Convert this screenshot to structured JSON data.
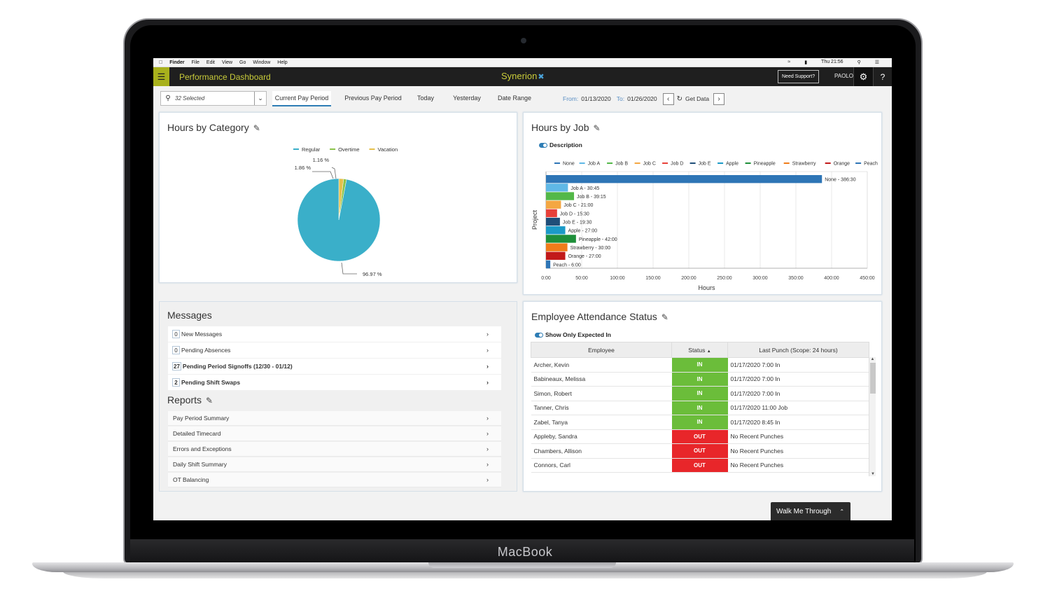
{
  "device": {
    "brand": "MacBook"
  },
  "macos_menubar": {
    "items": [
      "Finder",
      "File",
      "Edit",
      "View",
      "Go",
      "Window",
      "Help"
    ],
    "clock": "Thu 21:56"
  },
  "appbar": {
    "title": "Performance Dashboard",
    "logo": "Synerion",
    "support_label": "Need Support?",
    "user": "PAOLO"
  },
  "toolbar": {
    "selection": "32 Selected",
    "tabs": [
      "Current Pay Period",
      "Previous Pay Period",
      "Today",
      "Yesterday",
      "Date Range"
    ],
    "active_tab": 0,
    "from_label": "From:",
    "from_date": "01/13/2020",
    "to_label": "To:",
    "to_date": "01/26/2020",
    "get_data_label": "Get Data"
  },
  "hours_by_category": {
    "title": "Hours by Category",
    "chart_data": {
      "type": "pie",
      "legend": [
        "Regular",
        "Overtime",
        "Vacation"
      ],
      "colors": [
        "#3aafc9",
        "#8bc34a",
        "#e6c04b"
      ],
      "values": [
        96.97,
        1.16,
        1.86
      ],
      "labels": [
        "96.97 %",
        "1.16 %",
        "1.86 %"
      ]
    }
  },
  "hours_by_job": {
    "title": "Hours by Job",
    "toggle_label": "Description",
    "chart_data": {
      "type": "bar",
      "orientation": "horizontal",
      "categories": [
        "None",
        "Job A",
        "Job B",
        "Job C",
        "Job D",
        "Job E",
        "Apple",
        "Pineapple",
        "Strawberry",
        "Orange",
        "Peach"
      ],
      "values": [
        386.5,
        30.75,
        39.25,
        21.0,
        15.5,
        19.5,
        27.0,
        42.0,
        30.0,
        27.0,
        6.0
      ],
      "labels": [
        "None - 386:30",
        "Job A - 30:45",
        "Job B - 39:15",
        "Job C - 21:00",
        "Job D - 15:30",
        "Job E - 19:30",
        "Apple - 27:00",
        "Pineapple - 42:00",
        "Strawberry - 30:00",
        "Orange - 27:00",
        "Peach - 6:00"
      ],
      "colors": [
        "#2e75b6",
        "#5fb8e6",
        "#53b848",
        "#f4a742",
        "#e8413a",
        "#1f4e79",
        "#1b9ac7",
        "#1e8f3a",
        "#f07c1a",
        "#c21a1a",
        "#2e75b6"
      ],
      "xlabel": "Hours",
      "ylabel": "Project",
      "xlim": [
        0,
        450
      ],
      "xticks": [
        "0:00",
        "50:00",
        "100:00",
        "150:00",
        "200:00",
        "250:00",
        "300:00",
        "350:00",
        "400:00",
        "450:00"
      ]
    }
  },
  "messages": {
    "title": "Messages",
    "items": [
      {
        "count": "0",
        "label": "New Messages",
        "bold": false
      },
      {
        "count": "0",
        "label": "Pending Absences",
        "bold": false
      },
      {
        "count": "27",
        "label": "Pending Period Signoffs (12/30 - 01/12)",
        "bold": true
      },
      {
        "count": "2",
        "label": "Pending Shift Swaps",
        "bold": true
      }
    ]
  },
  "reports": {
    "title": "Reports",
    "items": [
      "Pay Period Summary",
      "Detailed Timecard",
      "Errors and Exceptions",
      "Daily Shift Summary",
      "OT Balancing"
    ]
  },
  "attendance": {
    "title": "Employee Attendance Status",
    "toggle_label": "Show Only Expected In",
    "columns": [
      "Employee",
      "Status",
      "Last Punch (Scope: 24 hours)"
    ],
    "rows": [
      {
        "employee": "Archer, Kevin",
        "status": "IN",
        "punch": "01/17/2020 7:00 In"
      },
      {
        "employee": "Babineaux, Melissa",
        "status": "IN",
        "punch": "01/17/2020 7:00 In"
      },
      {
        "employee": "Simon, Robert",
        "status": "IN",
        "punch": "01/17/2020 7:00 In"
      },
      {
        "employee": "Tanner, Chris",
        "status": "IN",
        "punch": "01/17/2020 11:00 Job"
      },
      {
        "employee": "Zabel, Tanya",
        "status": "IN",
        "punch": "01/17/2020 8:45 In"
      },
      {
        "employee": "Appleby, Sandra",
        "status": "OUT",
        "punch": "No Recent Punches"
      },
      {
        "employee": "Chambers, Allison",
        "status": "OUT",
        "punch": "No Recent Punches"
      },
      {
        "employee": "Connors, Carl",
        "status": "OUT",
        "punch": "No Recent Punches"
      }
    ]
  },
  "walkme": {
    "label": "Walk Me Through"
  }
}
